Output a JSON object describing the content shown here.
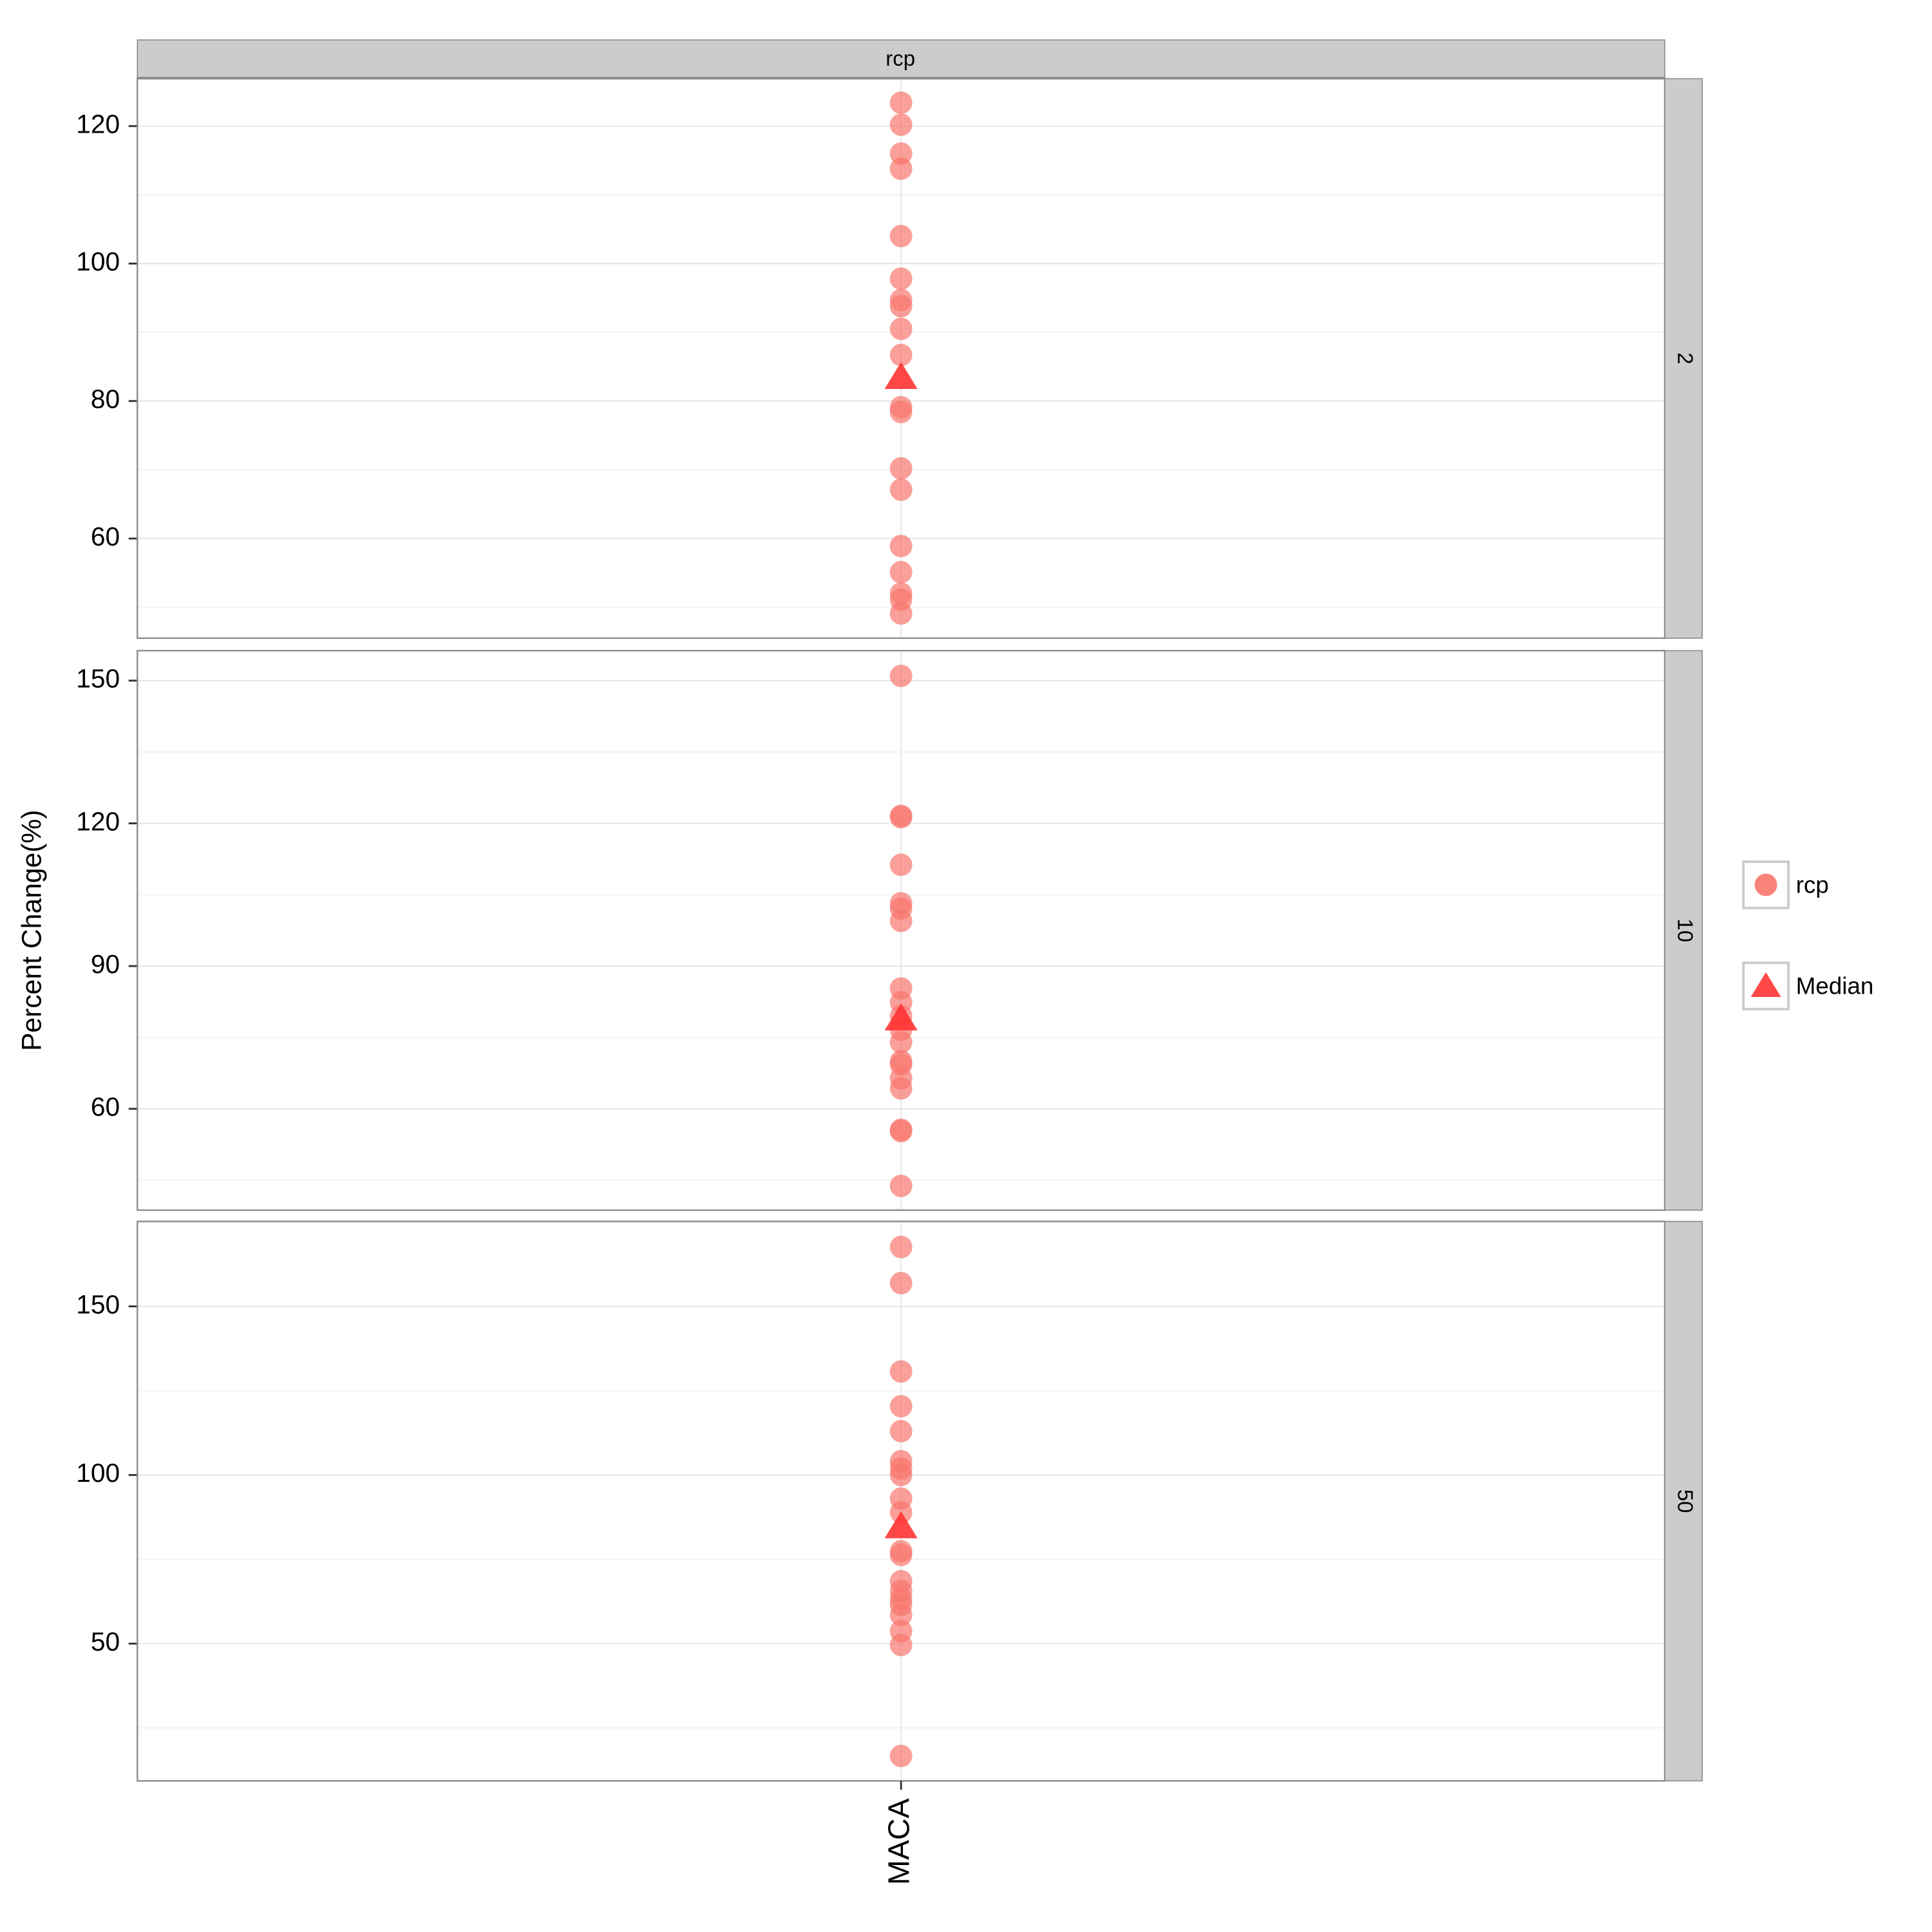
{
  "strip_label": "rcp",
  "ylabel": "Percent Change(%)",
  "chart_data": [
    {
      "type": "strip",
      "facet": "2",
      "categories": [
        "MACA"
      ],
      "series": [
        {
          "name": "rcp",
          "color": "#F8766D",
          "values": [
            123.4,
            120.2,
            116,
            113.8,
            104,
            97.8,
            94.7,
            93.8,
            90.5,
            86.7,
            79.1,
            78.4,
            70.2,
            67.1,
            58.9,
            55.1,
            52,
            51.1,
            49.1
          ]
        },
        {
          "name": "Median",
          "color": "#FF3333",
          "values": [
            83.5
          ]
        }
      ],
      "ylim": [
        45.5,
        126.9
      ],
      "yticks": [
        60,
        80,
        100,
        120
      ]
    },
    {
      "type": "strip",
      "facet": "10",
      "categories": [
        "MACA"
      ],
      "series": [
        {
          "name": "rcp",
          "color": "#F8766D",
          "values": [
            151,
            121.6,
            121.3,
            111.3,
            103.2,
            102.1,
            99.5,
            85.3,
            82.4,
            79.5,
            76.6,
            74,
            70,
            69.3,
            66.4,
            64.3,
            55.6,
            55.3,
            43.8
          ]
        },
        {
          "name": "Median",
          "color": "#FF3333",
          "values": [
            79
          ]
        }
      ],
      "ylim": [
        38.7,
        156.3
      ],
      "yticks": [
        60,
        90,
        120,
        150
      ]
    },
    {
      "type": "strip",
      "facet": "50",
      "categories": [
        "MACA"
      ],
      "series": [
        {
          "name": "rcp",
          "color": "#F8766D",
          "values": [
            167.6,
            156.9,
            130.7,
            120.4,
            113,
            104.1,
            101.9,
            100,
            93,
            88.9,
            77.4,
            76.3,
            68.5,
            65.6,
            63.3,
            61.5,
            58.5,
            53.7,
            49.6,
            16.7
          ]
        },
        {
          "name": "Median",
          "color": "#FF3333",
          "values": [
            84.8
          ]
        }
      ],
      "ylim": [
        9.3,
        175.2
      ],
      "yticks": [
        50,
        100,
        150
      ]
    }
  ]
}
